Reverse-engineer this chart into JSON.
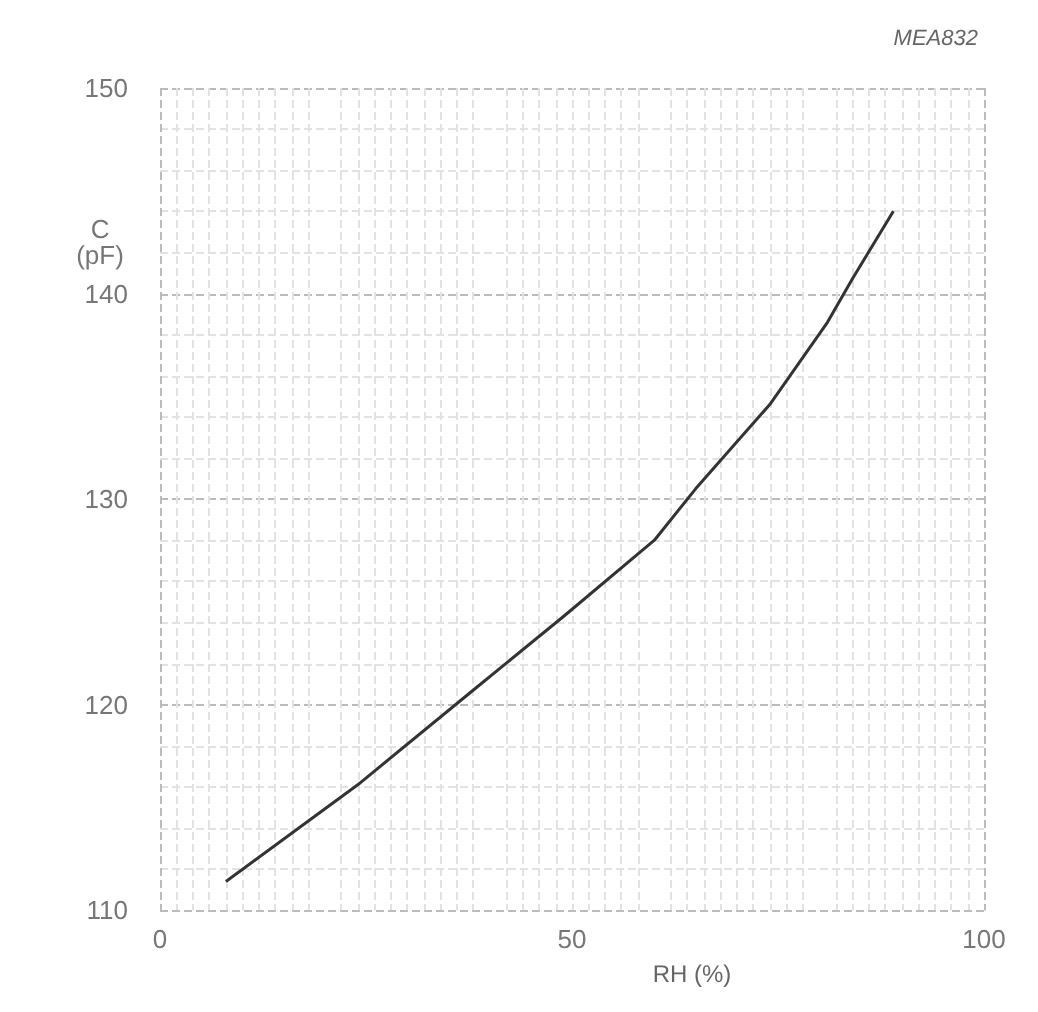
{
  "chart_data": {
    "type": "line",
    "xlabel": "RH (%)",
    "ylabel": "C\n(pF)",
    "annotations": [
      "MEA832"
    ],
    "x": [
      8,
      24,
      38,
      49,
      60,
      65,
      74,
      81,
      84,
      89
    ],
    "values": [
      111.4,
      116.1,
      120.7,
      124.3,
      128,
      130.5,
      134.6,
      138.6,
      140.7,
      144
    ],
    "color": "#333333",
    "xlim": [
      0,
      100
    ],
    "xticks": [
      0,
      50,
      100
    ],
    "ylim": [
      110,
      150
    ],
    "yticks": [
      110,
      120,
      130,
      140,
      150
    ],
    "grid": true,
    "marker": "none",
    "line_style": "solid"
  }
}
